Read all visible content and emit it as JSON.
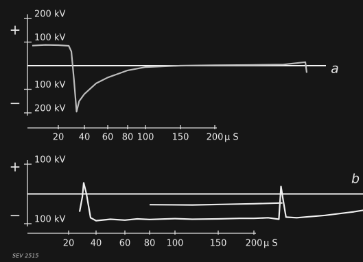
{
  "chart_data": [
    {
      "type": "line",
      "sign_plus": "+",
      "sign_minus": "−",
      "trace_label": "a",
      "x_unit": "μ S",
      "xlim": [
        0,
        350
      ],
      "xticks": [
        20,
        40,
        60,
        80,
        100,
        150,
        200
      ],
      "ylim": [
        -200,
        200
      ],
      "yticks": [
        {
          "value": 200,
          "label": "200 kV"
        },
        {
          "value": 100,
          "label": "100 kV"
        },
        {
          "value": -100,
          "label": "100 kV"
        },
        {
          "value": -200,
          "label": "200 kV"
        }
      ],
      "zero_line": true,
      "series": [
        {
          "color": "#bdbdbd",
          "x": [
            0,
            10,
            20,
            28,
            30,
            32,
            34,
            36,
            40,
            50,
            60,
            70,
            80,
            100,
            150,
            200,
            250,
            300,
            332,
            334
          ],
          "values": [
            85,
            88,
            87,
            84,
            60,
            -60,
            -195,
            -150,
            -120,
            -75,
            -50,
            -35,
            -20,
            -6,
            0,
            2,
            3,
            5,
            15,
            -30
          ]
        }
      ]
    },
    {
      "type": "line",
      "sign_plus": "+",
      "sign_minus": "−",
      "trace_label": "b",
      "x_unit": "μ S",
      "caption": "SEV 2515",
      "xlim": [
        0,
        360
      ],
      "xticks": [
        20,
        40,
        60,
        80,
        100,
        150,
        200
      ],
      "ylim": [
        -100,
        100
      ],
      "yticks": [
        {
          "value": 100,
          "label": "100 kV"
        },
        {
          "value": -100,
          "label": "100 kV"
        }
      ],
      "zero_line": true,
      "series": [
        {
          "color": "#f0f0f0",
          "x": [
            28,
            30,
            31,
            33,
            36,
            40,
            50,
            60,
            70,
            80,
            100,
            120,
            150,
            180,
            200,
            220,
            235,
            238,
            241,
            245,
            260,
            300,
            340,
            353
          ],
          "values": [
            -60,
            -10,
            37,
            0,
            -80,
            -90,
            -85,
            -88,
            -84,
            -86,
            -83,
            -85,
            -84,
            -82,
            -82,
            -80,
            -85,
            25,
            -20,
            -78,
            -80,
            -72,
            -60,
            -55
          ]
        },
        {
          "color": "#e8e8e8",
          "x": [
            80,
            120,
            160,
            200,
            240
          ],
          "values": [
            -36,
            -37,
            -35,
            -33,
            -30
          ]
        }
      ]
    }
  ]
}
